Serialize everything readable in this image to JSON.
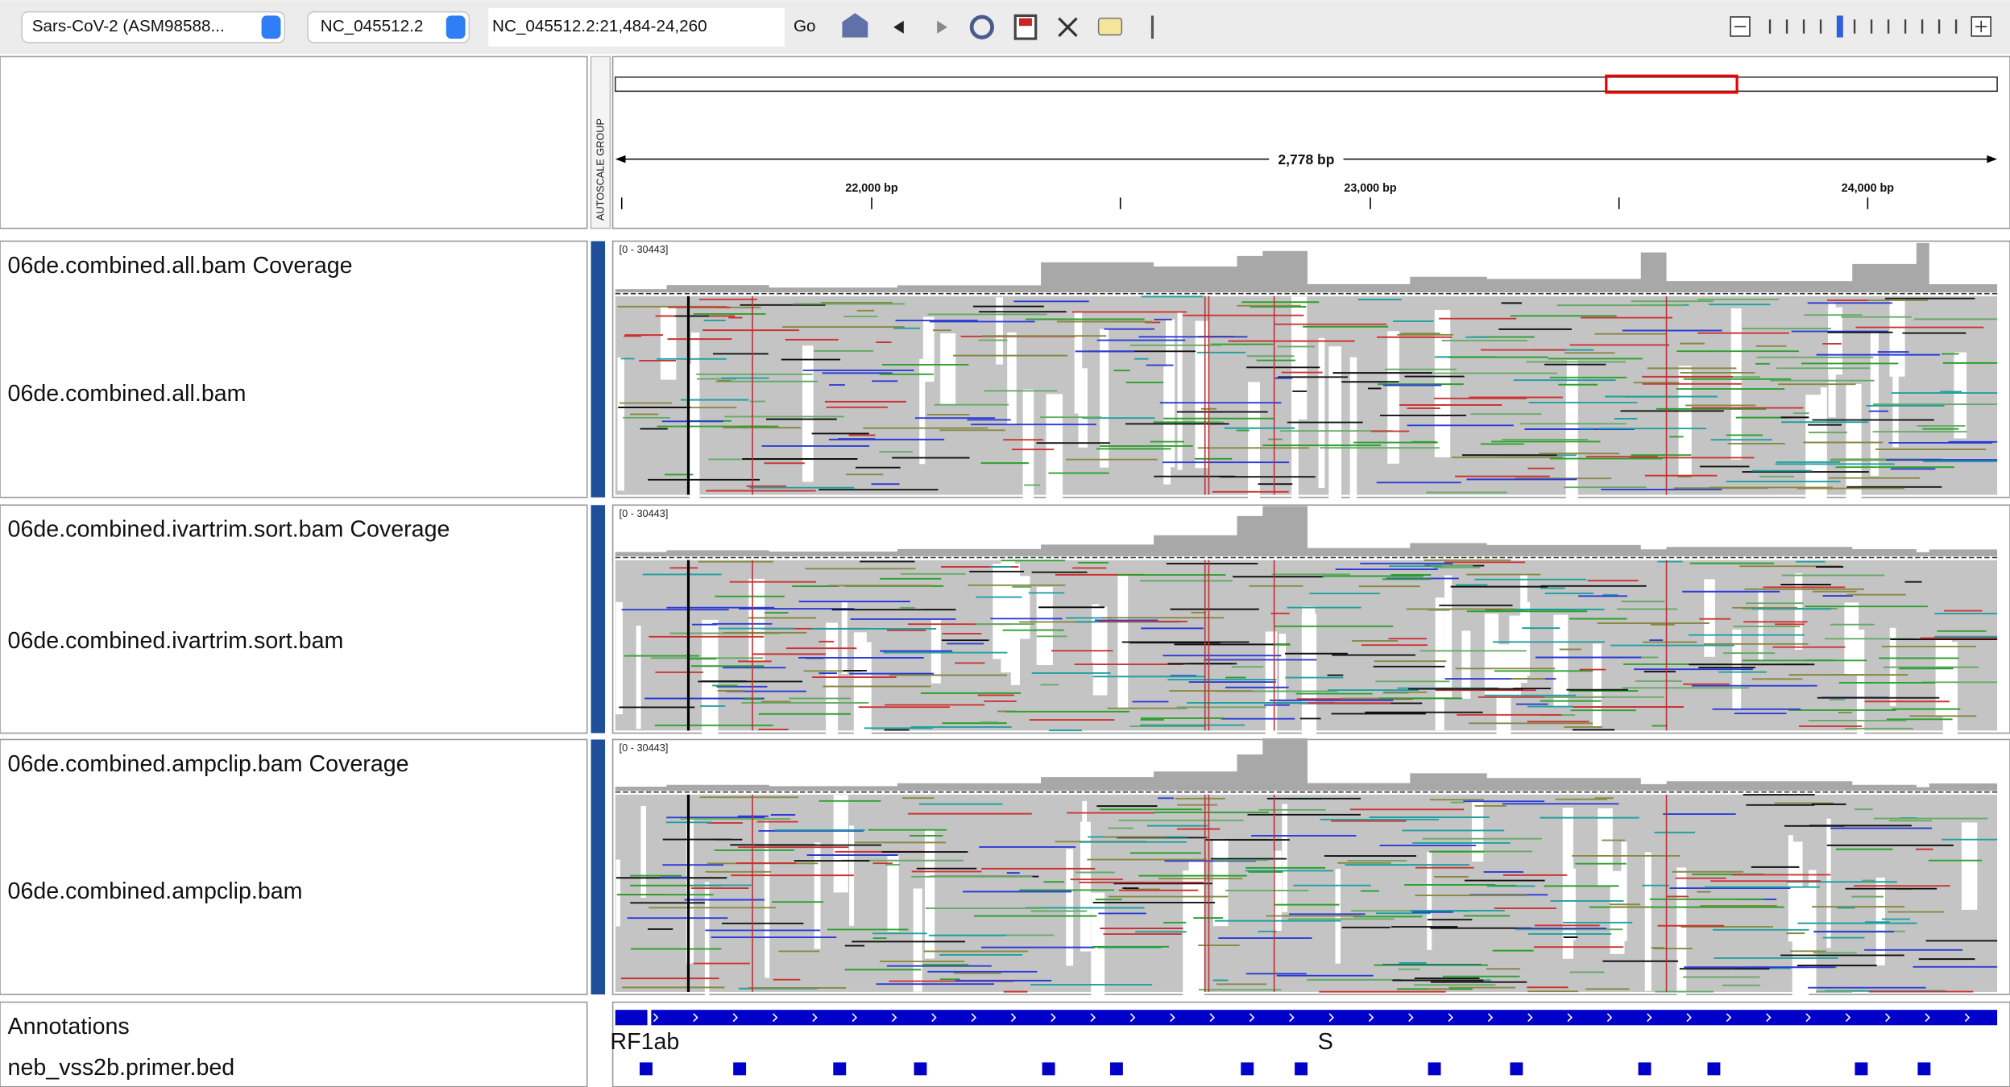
{
  "toolbar": {
    "genome": "Sars-CoV-2 (ASM98588...",
    "chromosome": "NC_045512.2",
    "locus": "NC_045512.2:21,484-24,260",
    "go": "Go"
  },
  "header": {
    "autoscale": "AUTOSCALE GROUP",
    "span": "2,778 bp",
    "ruler_labels": [
      "22,000 bp",
      "23,000 bp",
      "24,000 bp"
    ]
  },
  "tracks": [
    {
      "coverage_name": "06de.combined.all.bam Coverage",
      "range": "[0 - 30443]",
      "alignment_name": "06de.combined.all.bam"
    },
    {
      "coverage_name": "06de.combined.ivartrim.sort.bam Coverage",
      "range": "[0 - 30443]",
      "alignment_name": "06de.combined.ivartrim.sort.bam"
    },
    {
      "coverage_name": "06de.combined.ampclip.bam Coverage",
      "range": "[0 - 30443]",
      "alignment_name": "06de.combined.ampclip.bam"
    }
  ],
  "annotations": {
    "title": "Annotations",
    "genes": [
      "RF1ab",
      "S"
    ],
    "primer_track": "neb_vss2b.primer.bed"
  }
}
